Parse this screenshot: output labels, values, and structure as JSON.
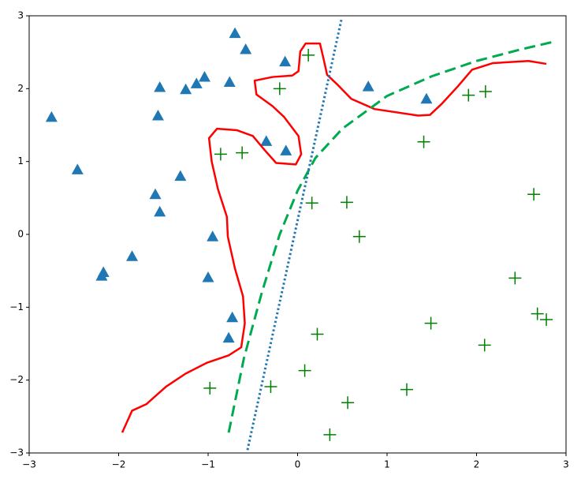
{
  "chart_data": {
    "type": "scatter",
    "xlim": [
      -3,
      3
    ],
    "ylim": [
      -3,
      3
    ],
    "xticks": [
      {
        "value": -3,
        "label": "−3"
      },
      {
        "value": -2,
        "label": "−2"
      },
      {
        "value": -1,
        "label": "−1"
      },
      0,
      1,
      2,
      3
    ],
    "yticks": [
      {
        "value": -3,
        "label": "−3"
      },
      {
        "value": -2,
        "label": "−2"
      },
      {
        "value": -1,
        "label": "−1"
      },
      0,
      1,
      2,
      3
    ],
    "series": [
      {
        "marker": "triangle",
        "color": "#1f77b4",
        "x": [
          -2.75,
          -2.46,
          -0.7,
          -0.58,
          -0.14,
          -1.54,
          -1.25,
          -1.13,
          -1.04,
          -0.76,
          0.79,
          1.44,
          -1.56,
          -0.35,
          -0.13,
          -1.31,
          -1.59,
          -1.54,
          -0.95,
          -1.85,
          -2.17,
          -2.19,
          -1.0,
          -0.73,
          -0.77
        ],
        "values": [
          1.61,
          0.89,
          2.76,
          2.54,
          2.37,
          2.02,
          1.99,
          2.07,
          2.16,
          2.09,
          2.03,
          1.86,
          1.63,
          1.28,
          1.15,
          0.8,
          0.55,
          0.31,
          -0.03,
          -0.3,
          -0.52,
          -0.57,
          -0.59,
          -1.14,
          -1.42
        ]
      },
      {
        "marker": "plus",
        "color": "#008000",
        "x": [
          0.12,
          -0.2,
          -0.86,
          -0.62,
          1.91,
          2.1,
          1.41,
          2.64,
          0.16,
          0.55,
          0.69,
          2.43,
          2.68,
          2.78,
          1.49,
          2.09,
          0.22,
          0.08,
          -0.98,
          -0.3,
          1.22,
          0.56,
          0.36
        ],
        "values": [
          2.46,
          2.0,
          1.1,
          1.12,
          1.91,
          1.96,
          1.27,
          0.55,
          0.43,
          0.44,
          -0.03,
          -0.6,
          -1.09,
          -1.17,
          -1.22,
          -1.52,
          -1.37,
          -1.87,
          -2.11,
          -2.09,
          -2.13,
          -2.31,
          -2.75
        ]
      },
      {
        "line": "solid",
        "color": "#ff0000",
        "x": [
          -1.96,
          -1.85,
          -1.69,
          -1.47,
          -1.25,
          -1.01,
          -0.77,
          -0.63,
          -0.59,
          -0.61,
          -0.7,
          -0.78,
          -0.79,
          -0.89,
          -0.96,
          -0.99,
          -0.9,
          -0.68,
          -0.5,
          -0.37,
          -0.24,
          -0.02,
          0.04,
          0.01,
          -0.15,
          -0.28,
          -0.46,
          -0.48,
          -0.28,
          -0.06,
          0.01,
          0.03,
          0.09,
          0.25,
          0.29,
          0.33,
          0.45,
          0.6,
          0.86,
          1.35,
          1.48,
          1.61,
          1.79,
          1.95,
          2.18,
          2.58,
          2.78
        ],
        "values": [
          -2.72,
          -2.42,
          -2.33,
          -2.09,
          -1.91,
          -1.76,
          -1.66,
          -1.55,
          -1.22,
          -0.85,
          -0.47,
          -0.03,
          0.24,
          0.62,
          1.0,
          1.32,
          1.45,
          1.43,
          1.35,
          1.16,
          0.98,
          0.96,
          1.1,
          1.35,
          1.61,
          1.76,
          1.92,
          2.11,
          2.16,
          2.18,
          2.24,
          2.51,
          2.62,
          2.62,
          2.41,
          2.19,
          2.05,
          1.86,
          1.72,
          1.63,
          1.64,
          1.79,
          2.03,
          2.26,
          2.35,
          2.38,
          2.34
        ]
      },
      {
        "line": "dashed",
        "color": "#00aa4f",
        "x": [
          -0.77,
          -0.6,
          -0.4,
          -0.2,
          0,
          0.2,
          0.5,
          1.0,
          1.5,
          2.0,
          2.5,
          2.85
        ],
        "values": [
          -2.72,
          -1.7,
          -0.8,
          0.0,
          0.6,
          1.05,
          1.45,
          1.9,
          2.17,
          2.38,
          2.54,
          2.64
        ]
      },
      {
        "line": "dotted",
        "color": "#1f77b4",
        "x": [
          -0.56,
          0.49
        ],
        "values": [
          -2.96,
          2.95
        ]
      }
    ]
  }
}
